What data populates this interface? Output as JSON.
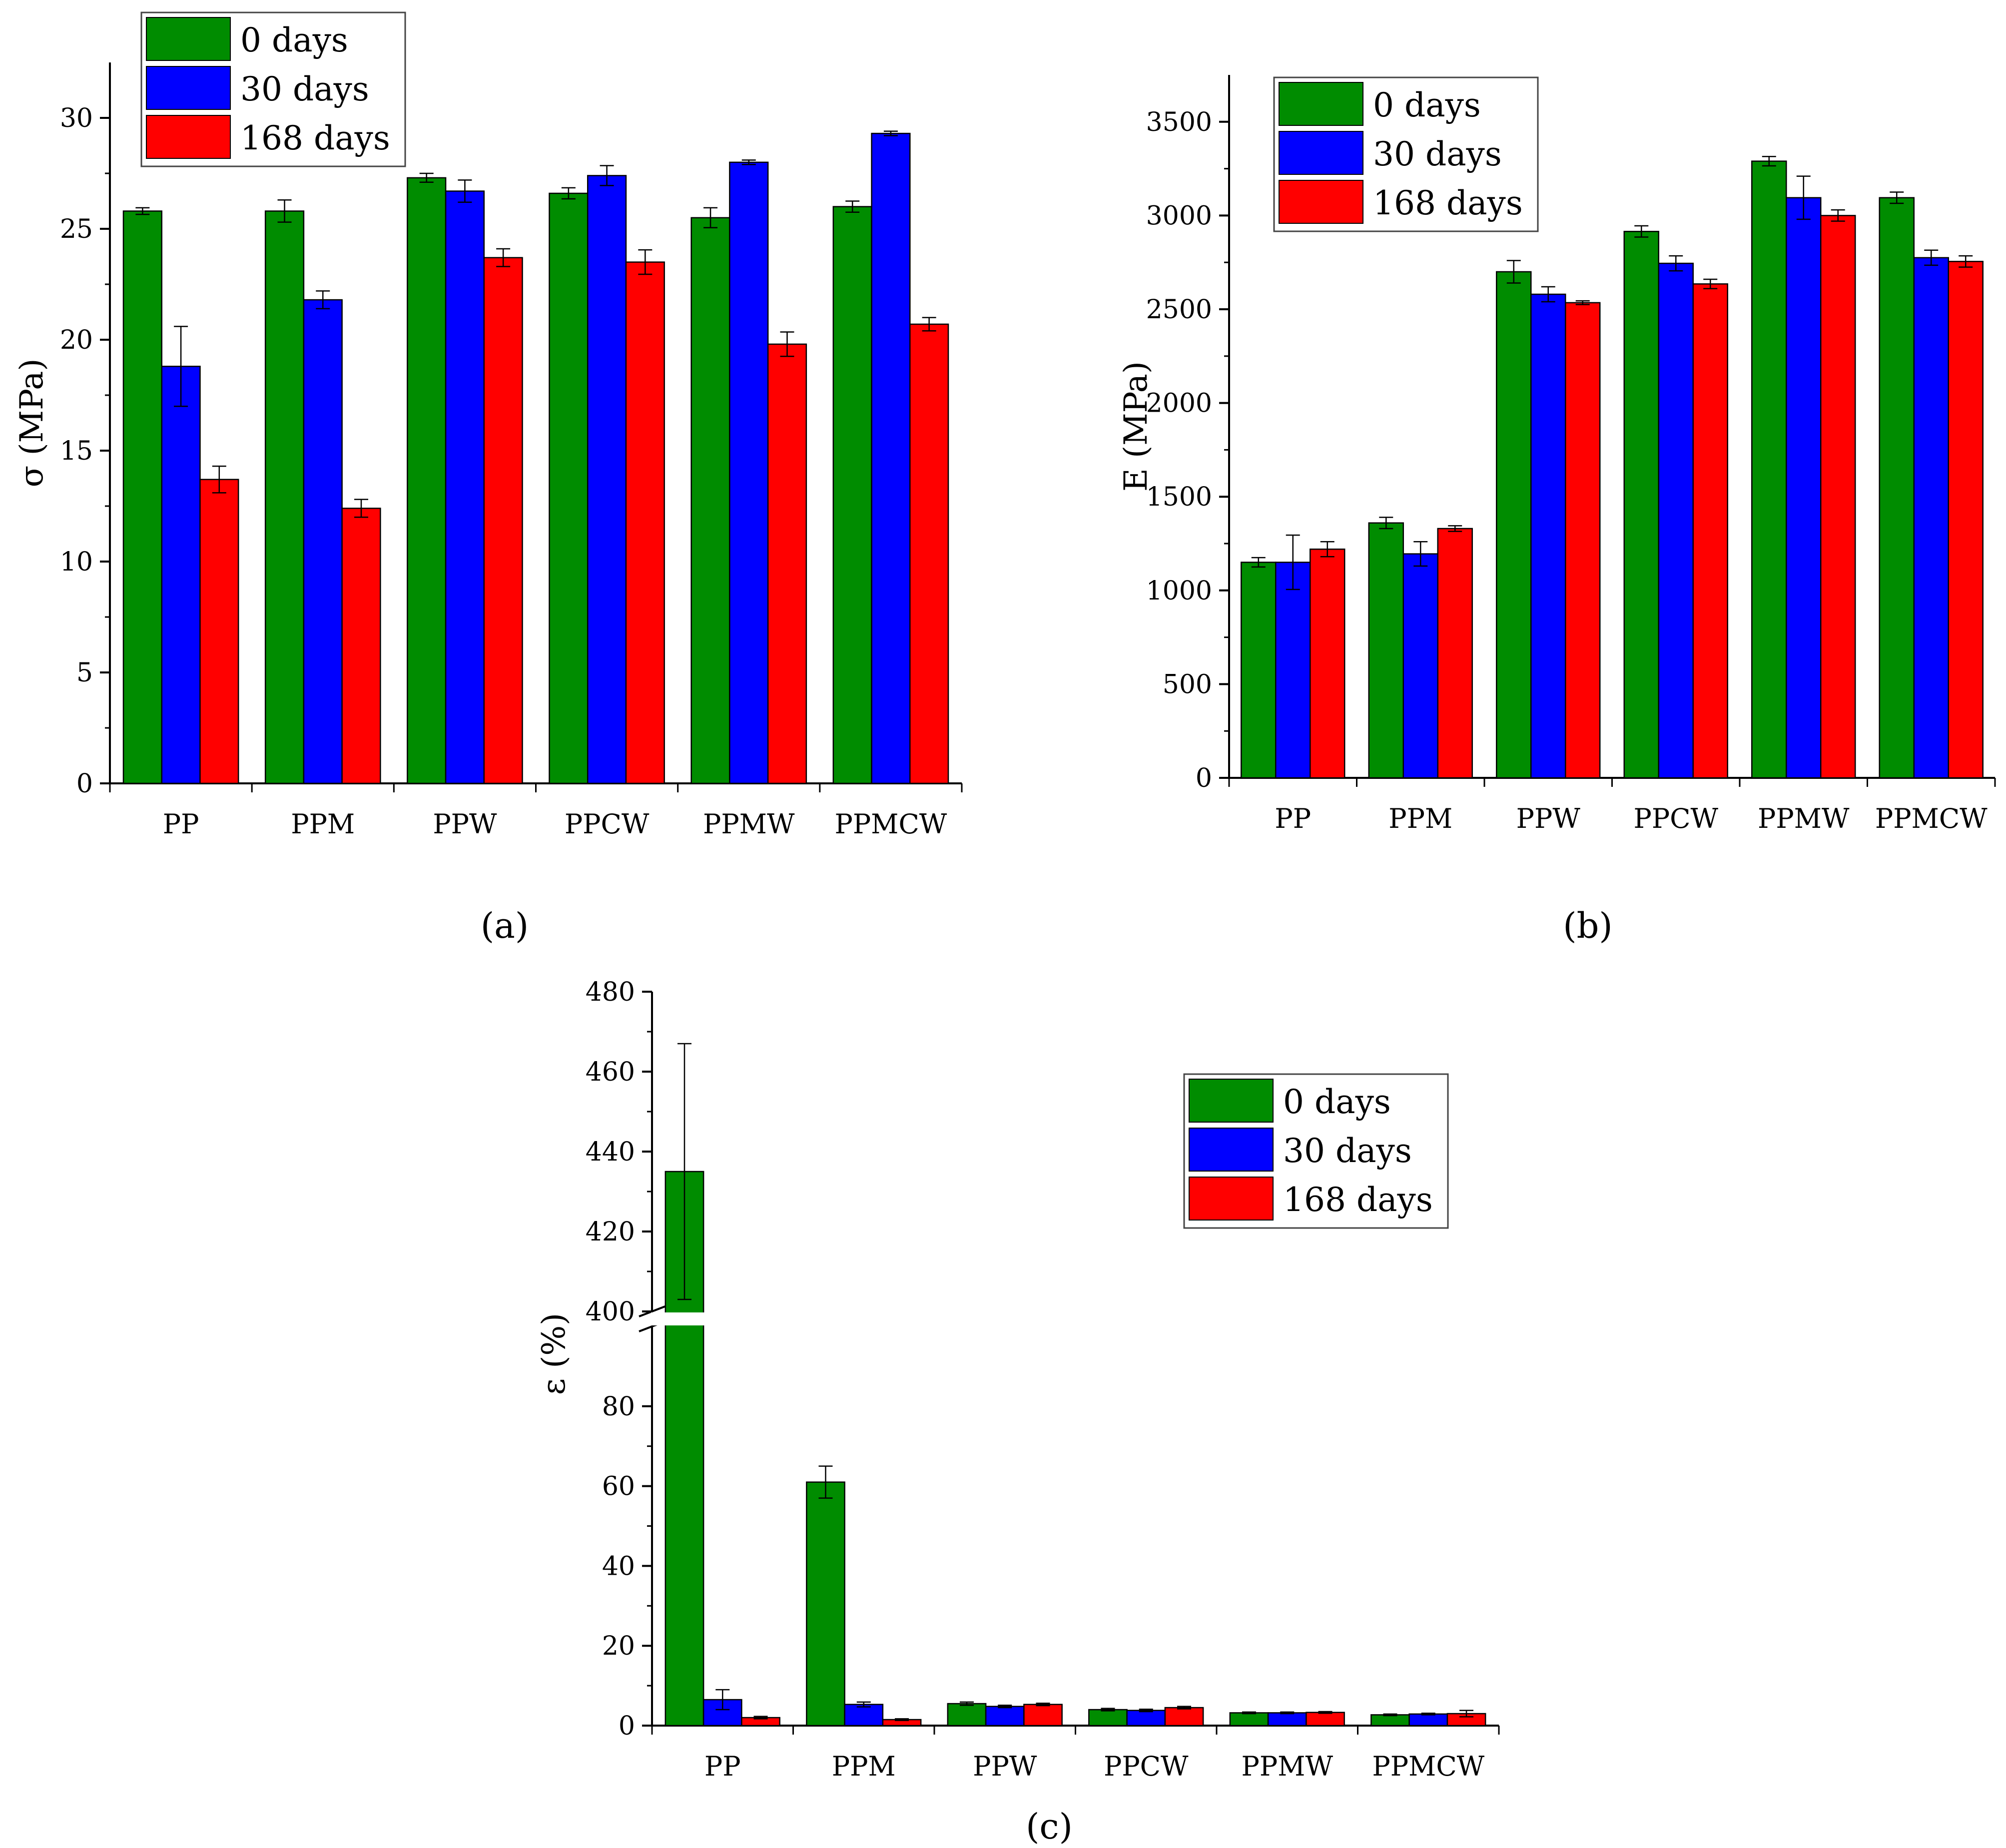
{
  "colors": {
    "0 days": "#008c00",
    "30 days": "#0000ff",
    "168 days": "#ff0000",
    "axis": "#000000"
  },
  "chart_data": [
    {
      "type": "bar",
      "panel_label": "(a)",
      "categories": [
        "PP",
        "PPM",
        "PPW",
        "PPCW",
        "PPMW",
        "PPMCW"
      ],
      "ylabel": "σ (MPa)",
      "xlabel": "",
      "ylim": [
        0,
        32.5
      ],
      "yticks": [
        "0",
        "5",
        "10",
        "15",
        "20",
        "25",
        "30"
      ],
      "legend_position": "top-left",
      "series": [
        {
          "name": "0 days",
          "values": [
            25.8,
            25.8,
            27.3,
            26.6,
            25.5,
            26.0
          ],
          "errors": [
            0.15,
            0.5,
            0.2,
            0.25,
            0.45,
            0.25
          ]
        },
        {
          "name": "30 days",
          "values": [
            18.8,
            21.8,
            26.7,
            27.4,
            28.0,
            29.3
          ],
          "errors": [
            1.8,
            0.4,
            0.5,
            0.45,
            0.1,
            0.1
          ]
        },
        {
          "name": "168 days",
          "values": [
            13.7,
            12.4,
            23.7,
            23.5,
            19.8,
            20.7
          ],
          "errors": [
            0.6,
            0.4,
            0.4,
            0.55,
            0.55,
            0.3
          ]
        }
      ]
    },
    {
      "type": "bar",
      "panel_label": "(b)",
      "categories": [
        "PP",
        "PPM",
        "PPW",
        "PPCW",
        "PPMW",
        "PPMCW"
      ],
      "ylabel": "E (MPa)",
      "xlabel": "",
      "ylim": [
        0,
        3750
      ],
      "yticks": [
        "0",
        "500",
        "1000",
        "1500",
        "2000",
        "2500",
        "3000",
        "3500"
      ],
      "legend_position": "top-left",
      "series": [
        {
          "name": "0 days",
          "values": [
            1150,
            1360,
            2700,
            2915,
            3290,
            3095
          ],
          "errors": [
            25,
            30,
            60,
            30,
            25,
            30
          ]
        },
        {
          "name": "30 days",
          "values": [
            1150,
            1195,
            2580,
            2745,
            3095,
            2775
          ],
          "errors": [
            145,
            65,
            40,
            40,
            115,
            40
          ]
        },
        {
          "name": "168 days",
          "values": [
            1220,
            1330,
            2535,
            2635,
            3000,
            2755
          ],
          "errors": [
            40,
            15,
            10,
            25,
            30,
            30
          ]
        }
      ]
    },
    {
      "type": "bar",
      "panel_label": "(c)",
      "categories": [
        "PP",
        "PPM",
        "PPW",
        "PPCW",
        "PPMW",
        "PPMCW"
      ],
      "ylabel": "ε (%)",
      "xlabel": "",
      "axis_break": {
        "lower_range": [
          0,
          100
        ],
        "upper_range": [
          400,
          480
        ]
      },
      "yticks_lower": [
        "0",
        "20",
        "40",
        "60",
        "80"
      ],
      "yticks_upper": [
        "400",
        "420",
        "440",
        "460",
        "480"
      ],
      "legend_position": "top-right",
      "series": [
        {
          "name": "0 days",
          "values": [
            435,
            61,
            5.5,
            4.0,
            3.2,
            2.7
          ],
          "errors": [
            32,
            4,
            0.4,
            0.3,
            0.2,
            0.2
          ]
        },
        {
          "name": "30 days",
          "values": [
            6.5,
            5.3,
            4.8,
            3.8,
            3.2,
            2.9
          ],
          "errors": [
            2.5,
            0.6,
            0.3,
            0.3,
            0.2,
            0.2
          ]
        },
        {
          "name": "168 days",
          "values": [
            2.0,
            1.5,
            5.3,
            4.5,
            3.3,
            3.0
          ],
          "errors": [
            0.3,
            0.2,
            0.3,
            0.3,
            0.2,
            0.8
          ]
        }
      ]
    }
  ]
}
